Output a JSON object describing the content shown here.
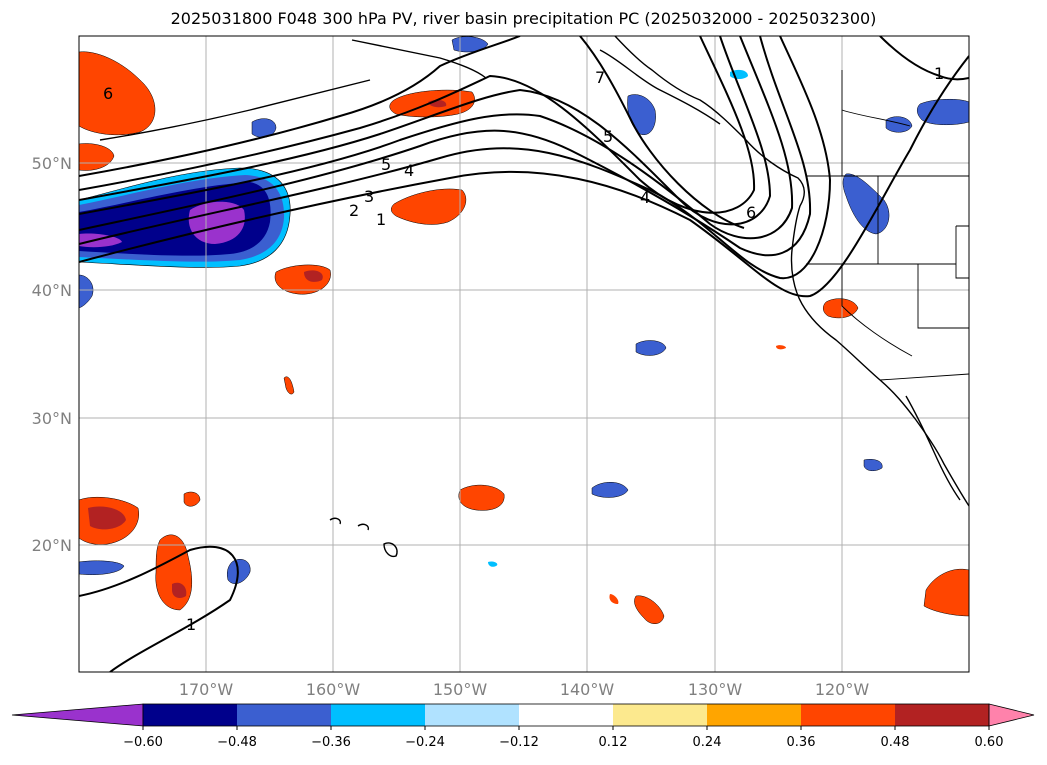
{
  "title": "2025031800 F048 300 hPa PV, river basin precipitation PC (2025032000 - 2025032300)",
  "map": {
    "lon_range": [
      -180,
      -110
    ],
    "lat_range": [
      10,
      60
    ],
    "lon_ticks": [
      {
        "lon": -170,
        "label": "170°W"
      },
      {
        "lon": -160,
        "label": "160°W"
      },
      {
        "lon": -150,
        "label": "150°W"
      },
      {
        "lon": -140,
        "label": "140°W"
      },
      {
        "lon": -130,
        "label": "130°W"
      },
      {
        "lon": -120,
        "label": "120°W"
      }
    ],
    "lat_ticks": [
      {
        "lat": 50,
        "label": "50°N"
      },
      {
        "lat": 40,
        "label": "40°N"
      },
      {
        "lat": 30,
        "label": "30°N"
      },
      {
        "lat": 20,
        "label": "20°N"
      }
    ],
    "grid": true,
    "pv_contour_labels": [
      "1",
      "2",
      "3",
      "4",
      "5",
      "6",
      "7"
    ]
  },
  "colorbar": {
    "ticks": [
      "−0.60",
      "−0.48",
      "−0.36",
      "−0.24",
      "−0.12",
      "0.12",
      "0.24",
      "0.36",
      "0.48",
      "0.60"
    ],
    "colors": [
      "#9a32cd",
      "#00008b",
      "#3b5fd0",
      "#00bfff",
      "#b0e2ff",
      "#ffffff",
      "#fce98e",
      "#ffa500",
      "#ff4500",
      "#b22222",
      "#ff82ab"
    ],
    "extend": "both"
  }
}
